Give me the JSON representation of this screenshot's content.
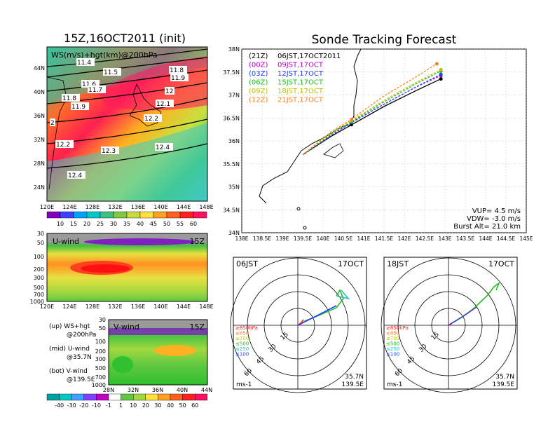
{
  "left_top": {
    "title": "15Z,16OCT2011 (init)",
    "label": "WS(m/s)+hgt(km)@200hPa",
    "lat_ticks": [
      "44N",
      "40N",
      "36N",
      "32N",
      "28N",
      "24N"
    ],
    "lon_ticks": [
      "120E",
      "124E",
      "128E",
      "132E",
      "136E",
      "140E",
      "144E",
      "148E"
    ],
    "contour_labels": [
      "11.4",
      "11.5",
      "11.8",
      "11.9",
      "11.6",
      "11.7",
      "12",
      "11.8",
      "11.9",
      "12.1",
      "2",
      "12.2",
      "12.2",
      "12.3",
      "12.4",
      "12.4"
    ],
    "colorbar": [
      "10",
      "15",
      "20",
      "25",
      "30",
      "35",
      "40",
      "45",
      "50",
      "55",
      "60"
    ]
  },
  "u_wind": {
    "title": "U-wind",
    "time": "15Z",
    "p_ticks": [
      "30",
      "50",
      "100",
      "200",
      "300",
      "500",
      "700",
      "1000"
    ],
    "lon_ticks": [
      "120E",
      "124E",
      "128E",
      "132E",
      "136E",
      "140E",
      "144E",
      "148E"
    ]
  },
  "v_wind": {
    "title": "V-wind",
    "time": "15Z",
    "p_ticks": [
      "30",
      "50",
      "100",
      "200",
      "300",
      "500",
      "700",
      "1000"
    ],
    "lat_ticks": [
      "28N",
      "32N",
      "36N",
      "40N",
      "44N"
    ],
    "colorbar": [
      "-40",
      "-30",
      "-20",
      "-10",
      "-1",
      "1",
      "10",
      "20",
      "30",
      "40",
      "50",
      "60"
    ]
  },
  "legend_notes": {
    "up": "(up) WS+hgt",
    "up2": "@200hPa",
    "mid": "(mid) U-wind",
    "mid2": "@35.7N",
    "bot": "(bot) V-wind",
    "bot2": "@139.5E"
  },
  "right_top": {
    "title": "Sonde Tracking Forecast",
    "legend": [
      {
        "code": "(21Z)",
        "text": "06JST,17OCT2011",
        "color": "#000000"
      },
      {
        "code": "(00Z)",
        "text": "09JST,17OCT",
        "color": "#c000c0"
      },
      {
        "code": "(03Z)",
        "text": "12JST,17OCT",
        "color": "#2040ff"
      },
      {
        "code": "(06Z)",
        "text": "15JST,17OCT",
        "color": "#20c020"
      },
      {
        "code": "(09Z)",
        "text": "18JST,17OCT",
        "color": "#c0c000"
      },
      {
        "code": "(12Z)",
        "text": "21JST,17OCT",
        "color": "#ff8020"
      }
    ],
    "lat_ticks": [
      "38N",
      "37.5N",
      "37N",
      "36.5N",
      "36N",
      "35.5N",
      "35N",
      "34.5N",
      "34N"
    ],
    "lon_ticks": [
      "138E",
      "138.5E",
      "139E",
      "139.5E",
      "140E",
      "140.5E",
      "141E",
      "141.5E",
      "142E",
      "142.5E",
      "143E",
      "143.5E",
      "144E",
      "144.5E",
      "145E"
    ],
    "params": [
      "VUP= 4.5 m/s",
      "VDW= -3.0 m/s",
      "Burst Alt= 21.0 km"
    ]
  },
  "chart_data": [
    {
      "type": "line",
      "title": "Sonde Tracking Forecast",
      "xlim": [
        138,
        145
      ],
      "ylim": [
        34,
        38
      ],
      "series": [
        {
          "name": "(21Z) 06JST,17OCT2011",
          "x": [
            139.5,
            140.2,
            140.7,
            141.5,
            142.3,
            142.9
          ],
          "y": [
            35.7,
            36.1,
            36.35,
            36.75,
            37.1,
            37.35
          ]
        },
        {
          "name": "(00Z) 09JST,17OCT",
          "x": [
            139.5,
            140.2,
            140.7,
            141.5,
            142.3,
            142.9
          ],
          "y": [
            35.7,
            36.12,
            36.4,
            36.8,
            37.18,
            37.42
          ]
        },
        {
          "name": "(03Z) 12JST,17OCT",
          "x": [
            139.5,
            140.2,
            140.7,
            141.5,
            142.3,
            142.9
          ],
          "y": [
            35.7,
            36.12,
            36.4,
            36.8,
            37.18,
            37.45
          ]
        },
        {
          "name": "(06Z) 15JST,17OCT",
          "x": [
            139.5,
            140.2,
            140.7,
            141.5,
            142.3,
            142.9
          ],
          "y": [
            35.7,
            36.15,
            36.42,
            36.85,
            37.25,
            37.52
          ]
        },
        {
          "name": "(09Z) 18JST,17OCT",
          "x": [
            139.5,
            140.2,
            140.7,
            141.5,
            142.3,
            142.9
          ],
          "y": [
            35.7,
            36.17,
            36.44,
            36.88,
            37.28,
            37.55
          ]
        },
        {
          "name": "(12Z) 21JST,17OCT",
          "x": [
            139.5,
            140.2,
            140.7,
            141.5,
            142.3,
            142.8
          ],
          "y": [
            35.7,
            36.2,
            36.47,
            36.98,
            37.4,
            37.68
          ]
        }
      ]
    }
  ],
  "polar_left": {
    "time": "06JST",
    "date": "17OCT",
    "ring_labels": [
      "15",
      "30",
      "45",
      "60"
    ],
    "levels": [
      "≥850hPa",
      "≤850",
      "≤700",
      "≤500",
      "≤250",
      "≤100"
    ],
    "level_colors": [
      "#ff2020",
      "#ff8020",
      "#c0c000",
      "#20c020",
      "#20c0c0",
      "#2040ff"
    ],
    "units": "ms-1",
    "loc1": "35.7N",
    "loc2": "139.5E"
  },
  "polar_right": {
    "time": "18JST",
    "date": "17OCT",
    "ring_labels": [
      "15",
      "30",
      "45",
      "60"
    ],
    "levels": [
      "≥850hPa",
      "≤850",
      "≤700",
      "≤500",
      "≤250",
      "≤100"
    ],
    "level_colors": [
      "#ff2020",
      "#ff8020",
      "#c0c000",
      "#20c020",
      "#20c0c0",
      "#2040ff"
    ],
    "units": "ms-1",
    "loc1": "35.7N",
    "loc2": "139.5E"
  }
}
